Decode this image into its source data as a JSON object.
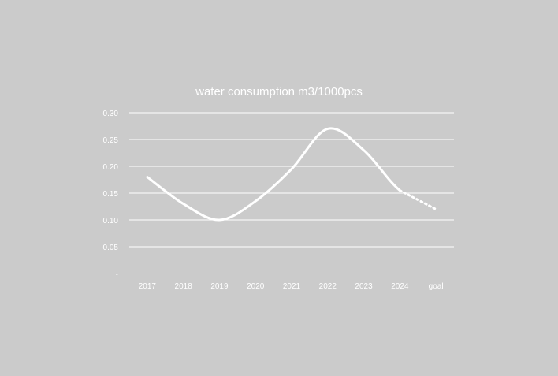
{
  "colors": {
    "background": "#cbcbcb",
    "line": "#ffffff",
    "grid": "#ffffff",
    "text": "#ffffff"
  },
  "chart_data": {
    "type": "line",
    "title": "water consumption  m3/1000pcs",
    "xlabel": "",
    "ylabel": "",
    "categories": [
      "2017",
      "2018",
      "2019",
      "2020",
      "2021",
      "2022",
      "2023",
      "2024",
      "goal"
    ],
    "y_tick_values": [
      0,
      0.05,
      0.1,
      0.15,
      0.2,
      0.25,
      0.3
    ],
    "y_tick_labels": [
      "-",
      "0.05",
      "0.10",
      "0.15",
      "0.20",
      "0.25",
      "0.30"
    ],
    "ylim": [
      0,
      0.3
    ],
    "grid": true,
    "legend": "none",
    "series": [
      {
        "values": [
          0.18,
          0.13,
          0.1,
          0.135,
          0.195,
          0.27,
          0.23,
          0.155,
          0.12
        ],
        "style": "solid to 2024, dotted from 2024 to goal"
      }
    ]
  }
}
